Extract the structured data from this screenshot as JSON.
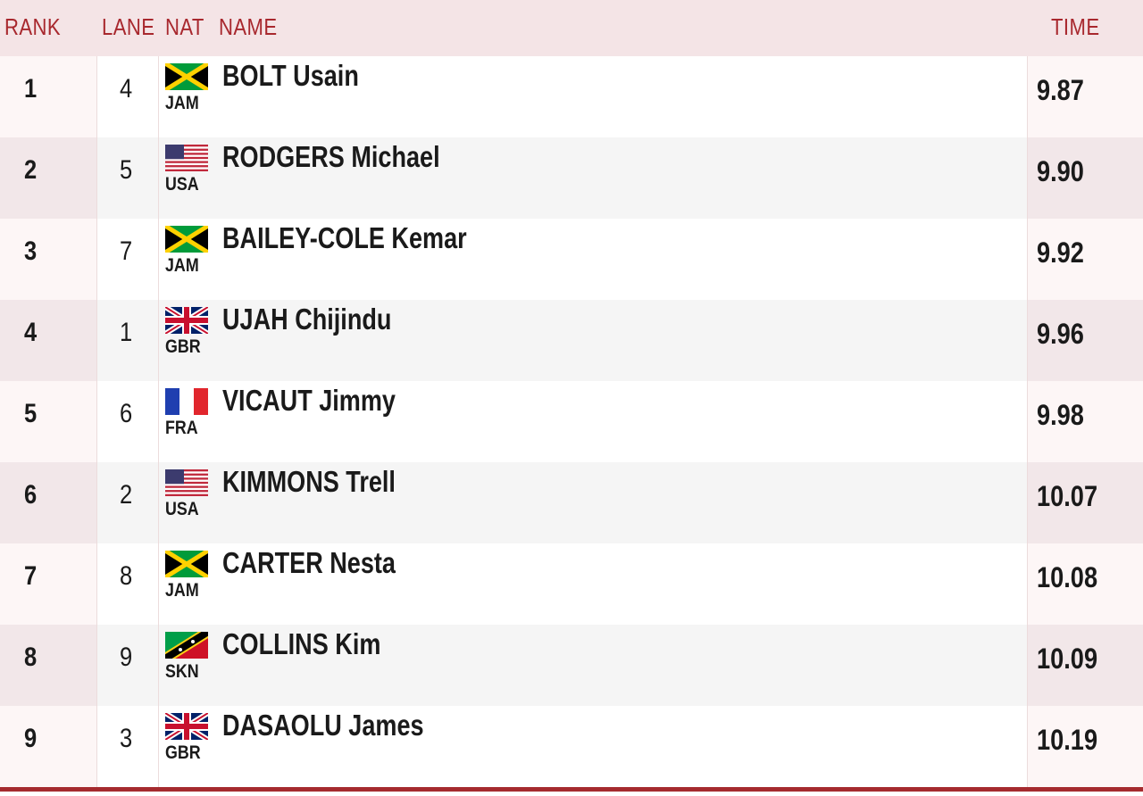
{
  "header": {
    "rank": "RANK",
    "lane": "LANE",
    "nat": "NAT",
    "name": "NAME",
    "time": "TIME"
  },
  "results": [
    {
      "rank": "1",
      "lane": "4",
      "nat": "JAM",
      "name": "BOLT Usain",
      "time": "9.87"
    },
    {
      "rank": "2",
      "lane": "5",
      "nat": "USA",
      "name": "RODGERS Michael",
      "time": "9.90"
    },
    {
      "rank": "3",
      "lane": "7",
      "nat": "JAM",
      "name": "BAILEY-COLE Kemar",
      "time": "9.92"
    },
    {
      "rank": "4",
      "lane": "1",
      "nat": "GBR",
      "name": "UJAH Chijindu",
      "time": "9.96"
    },
    {
      "rank": "5",
      "lane": "6",
      "nat": "FRA",
      "name": "VICAUT Jimmy",
      "time": "9.98"
    },
    {
      "rank": "6",
      "lane": "2",
      "nat": "USA",
      "name": "KIMMONS Trell",
      "time": "10.07"
    },
    {
      "rank": "7",
      "lane": "8",
      "nat": "JAM",
      "name": "CARTER Nesta",
      "time": "10.08"
    },
    {
      "rank": "8",
      "lane": "9",
      "nat": "SKN",
      "name": "COLLINS Kim",
      "time": "10.09"
    },
    {
      "rank": "9",
      "lane": "3",
      "nat": "GBR",
      "name": "DASAOLU James",
      "time": "10.19"
    }
  ],
  "flags": {
    "JAM": "jamaica-flag-icon",
    "USA": "usa-flag-icon",
    "GBR": "gbr-flag-icon",
    "FRA": "france-flag-icon",
    "SKN": "saint-kitts-nevis-flag-icon"
  },
  "colors": {
    "accent": "#a52a2e",
    "header_bg": "#f4e4e6"
  }
}
